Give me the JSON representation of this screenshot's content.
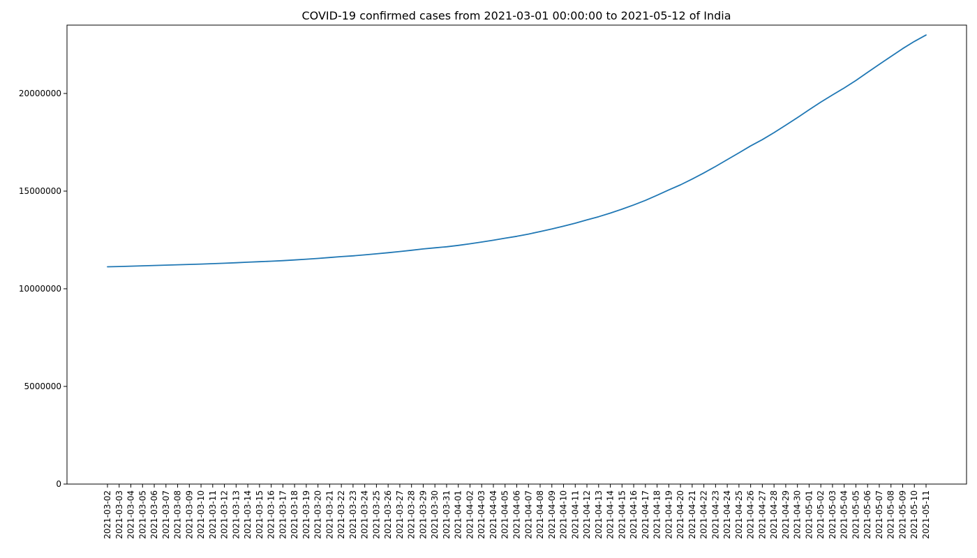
{
  "chart_data": {
    "type": "line",
    "title": "COVID-19 confirmed cases from 2021-03-01 00:00:00 to 2021-05-12 of India",
    "xlabel": "",
    "ylabel": "",
    "ylim": [
      0,
      23500000
    ],
    "yticks": [
      0,
      5000000,
      10000000,
      15000000,
      20000000
    ],
    "ytick_labels": [
      "0",
      "5000000",
      "10000000",
      "15000000",
      "20000000"
    ],
    "grid": false,
    "legend": "none",
    "line_color": "#1f77b4",
    "x": [
      "2021-03-02",
      "2021-03-03",
      "2021-03-04",
      "2021-03-05",
      "2021-03-06",
      "2021-03-07",
      "2021-03-08",
      "2021-03-09",
      "2021-03-10",
      "2021-03-11",
      "2021-03-12",
      "2021-03-13",
      "2021-03-14",
      "2021-03-15",
      "2021-03-16",
      "2021-03-17",
      "2021-03-18",
      "2021-03-19",
      "2021-03-20",
      "2021-03-21",
      "2021-03-22",
      "2021-03-23",
      "2021-03-24",
      "2021-03-25",
      "2021-03-26",
      "2021-03-27",
      "2021-03-28",
      "2021-03-29",
      "2021-03-30",
      "2021-03-31",
      "2021-04-01",
      "2021-04-02",
      "2021-04-03",
      "2021-04-04",
      "2021-04-05",
      "2021-04-06",
      "2021-04-07",
      "2021-04-08",
      "2021-04-09",
      "2021-04-10",
      "2021-04-11",
      "2021-04-12",
      "2021-04-13",
      "2021-04-14",
      "2021-04-15",
      "2021-04-16",
      "2021-04-17",
      "2021-04-18",
      "2021-04-19",
      "2021-04-20",
      "2021-04-21",
      "2021-04-22",
      "2021-04-23",
      "2021-04-24",
      "2021-04-25",
      "2021-04-26",
      "2021-04-27",
      "2021-04-28",
      "2021-04-29",
      "2021-04-30",
      "2021-05-01",
      "2021-05-02",
      "2021-05-03",
      "2021-05-04",
      "2021-05-05",
      "2021-05-06",
      "2021-05-07",
      "2021-05-08",
      "2021-05-09",
      "2021-05-10",
      "2021-05-11"
    ],
    "series": [
      {
        "values": [
          11124527,
          11139516,
          11156923,
          11173761,
          11192088,
          11210799,
          11229398,
          11244786,
          11262707,
          11285561,
          11308846,
          11333728,
          11359048,
          11385339,
          11409831,
          11438734,
          11474605,
          11514331,
          11555284,
          11599130,
          11646081,
          11686796,
          11734058,
          11787534,
          11846652,
          11908910,
          11971624,
          12039644,
          12095855,
          12149335,
          12221665,
          12303131,
          12392260,
          12485509,
          12589067,
          12686049,
          12801785,
          12928574,
          13060542,
          13205926,
          13358805,
          13527717,
          13689453,
          13873825,
          14074564,
          14291917,
          14526609,
          14788109,
          15061805,
          15321089,
          15616130,
          15930965,
          16263695,
          16610481,
          16960172,
          17313163,
          17636186,
          17997113,
          18376421,
          18762976,
          19164969,
          19557457,
          19925604,
          20282833,
          20665148,
          21077410,
          21491598,
          21892676,
          22296414,
          22662575,
          22992517
        ]
      }
    ]
  }
}
